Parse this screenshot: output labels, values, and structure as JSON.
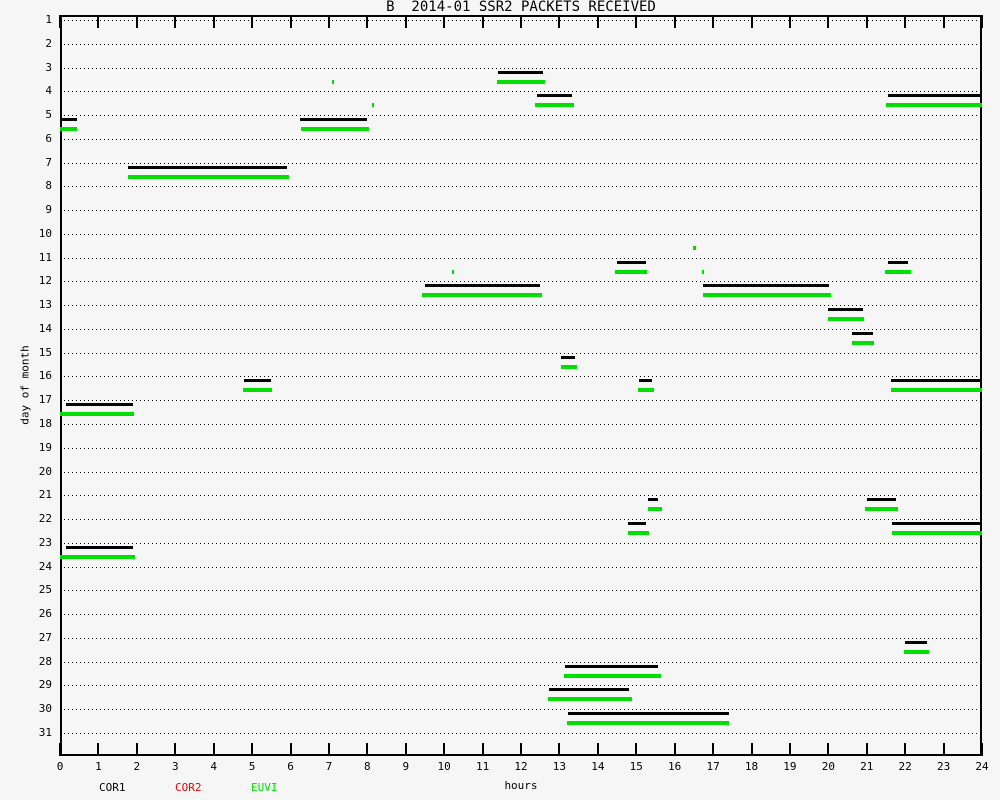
{
  "title": "B  2014-01 SSR2 PACKETS RECEIVED",
  "legend": [
    {
      "label": "COR1",
      "color": "#000000"
    },
    {
      "label": "COR2",
      "color": "#ee0000"
    },
    {
      "label": "EUVI",
      "color": "#00e000"
    }
  ],
  "chart_data": {
    "type": "bar",
    "subtype": "horizontal-segment-timeline",
    "title": "B  2014-01 SSR2 PACKETS RECEIVED",
    "xlabel": "hours",
    "ylabel": "day of month",
    "x_axis": {
      "label": "hours",
      "min": 0,
      "max": 24,
      "ticks": [
        0,
        1,
        2,
        3,
        4,
        5,
        6,
        7,
        8,
        9,
        10,
        11,
        12,
        13,
        14,
        15,
        16,
        17,
        18,
        19,
        20,
        21,
        22,
        23,
        24
      ]
    },
    "y_axis": {
      "label": "day of month",
      "min": 1,
      "max": 31,
      "ticks": [
        1,
        2,
        3,
        4,
        5,
        6,
        7,
        8,
        9,
        10,
        11,
        12,
        13,
        14,
        15,
        16,
        17,
        18,
        19,
        20,
        21,
        22,
        23,
        24,
        25,
        26,
        27,
        28,
        29,
        30,
        31
      ],
      "grid": "dotted"
    },
    "legend_position": "bottom-left",
    "series": [
      {
        "name": "COR1",
        "color": "#000000",
        "segments_format": [
          "day_of_month",
          "start_hour",
          "end_hour"
        ],
        "segments": [
          [
            3,
            11.4,
            12.57
          ],
          [
            4,
            12.42,
            13.33
          ],
          [
            4,
            21.55,
            24
          ],
          [
            5,
            0.05,
            0.45
          ],
          [
            5,
            6.25,
            8.0
          ],
          [
            7,
            1.76,
            5.92
          ],
          [
            11,
            14.5,
            15.26
          ],
          [
            11,
            21.56,
            22.08
          ],
          [
            12,
            9.5,
            12.5
          ],
          [
            12,
            16.73,
            20.02
          ],
          [
            13,
            20.0,
            20.9
          ],
          [
            14,
            20.62,
            21.17
          ],
          [
            15,
            13.05,
            13.4
          ],
          [
            16,
            4.8,
            5.49
          ],
          [
            16,
            15.07,
            15.41
          ],
          [
            16,
            21.63,
            24
          ],
          [
            17,
            0.16,
            1.89
          ],
          [
            21,
            15.3,
            15.57
          ],
          [
            21,
            21.0,
            21.76
          ],
          [
            22,
            14.79,
            15.25
          ],
          [
            22,
            21.65,
            24
          ],
          [
            23,
            0.16,
            1.89
          ],
          [
            27,
            22.0,
            22.56
          ],
          [
            28,
            13.14,
            15.57
          ],
          [
            29,
            12.73,
            14.81
          ],
          [
            30,
            13.22,
            17.41
          ]
        ]
      },
      {
        "name": "COR2",
        "color": "#ee0000",
        "segments_format": [
          "day_of_month",
          "start_hour",
          "end_hour"
        ],
        "segments": []
      },
      {
        "name": "EUVI",
        "color": "#00e000",
        "segments_format": [
          "day_of_month",
          "start_hour",
          "end_hour"
        ],
        "segments": [
          [
            3,
            7.08,
            7.14
          ],
          [
            3,
            11.38,
            12.62
          ],
          [
            4,
            8.12,
            8.18
          ],
          [
            4,
            12.37,
            13.38
          ],
          [
            4,
            21.5,
            24
          ],
          [
            5,
            0.0,
            0.45
          ],
          [
            5,
            6.27,
            8.05
          ],
          [
            7,
            1.76,
            5.95
          ],
          [
            10,
            16.47,
            16.55
          ],
          [
            11,
            10.2,
            10.26
          ],
          [
            11,
            14.45,
            15.29
          ],
          [
            11,
            16.7,
            16.76
          ],
          [
            11,
            21.48,
            22.16
          ],
          [
            12,
            9.43,
            12.54
          ],
          [
            12,
            16.75,
            20.06
          ],
          [
            13,
            20.0,
            20.94
          ],
          [
            14,
            20.62,
            21.2
          ],
          [
            15,
            13.05,
            13.46
          ],
          [
            16,
            4.76,
            5.53
          ],
          [
            16,
            15.04,
            15.47
          ],
          [
            16,
            21.63,
            24
          ],
          [
            17,
            0.0,
            1.93
          ],
          [
            21,
            15.3,
            15.66
          ],
          [
            21,
            20.96,
            21.81
          ],
          [
            22,
            14.78,
            15.32
          ],
          [
            22,
            21.65,
            24
          ],
          [
            23,
            0.0,
            1.94
          ],
          [
            27,
            21.97,
            22.62
          ],
          [
            28,
            13.12,
            15.65
          ],
          [
            29,
            12.71,
            14.89
          ],
          [
            30,
            13.21,
            17.41
          ]
        ]
      }
    ]
  }
}
